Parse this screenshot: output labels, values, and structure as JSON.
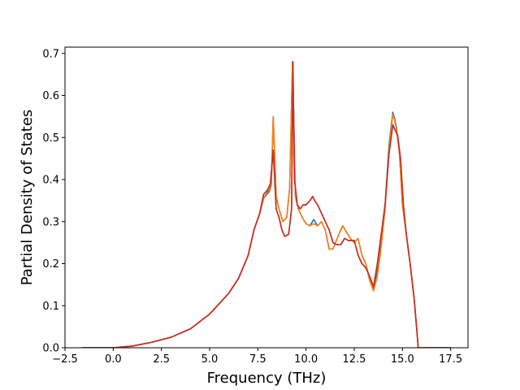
{
  "chart_data": {
    "type": "line",
    "title": "",
    "xlabel": "Frequency (THz)",
    "ylabel": "Partial Density of States",
    "xlim": [
      -2.5,
      18.4
    ],
    "ylim": [
      0.0,
      0.715
    ],
    "xticks": [
      -2.5,
      0.0,
      2.5,
      5.0,
      7.5,
      10.0,
      12.5,
      15.0,
      17.5
    ],
    "xtick_labels": [
      "−2.5",
      "0.0",
      "2.5",
      "5.0",
      "7.5",
      "10.0",
      "12.5",
      "15.0",
      "17.5"
    ],
    "yticks": [
      0.0,
      0.1,
      0.2,
      0.3,
      0.4,
      0.5,
      0.6,
      0.7
    ],
    "ytick_labels": [
      "0.0",
      "0.1",
      "0.2",
      "0.3",
      "0.4",
      "0.5",
      "0.6",
      "0.7"
    ],
    "grid": false,
    "legend": "none",
    "series": [
      {
        "color": "#1f77b4",
        "x": [
          -1.6,
          0.0,
          1.0,
          2.0,
          3.0,
          4.0,
          5.0,
          6.0,
          6.5,
          7.0,
          7.3,
          7.6,
          7.8,
          8.0,
          8.1,
          8.2,
          8.3,
          8.45,
          8.6,
          8.8,
          9.0,
          9.15,
          9.3,
          9.45,
          9.6,
          9.8,
          10.0,
          10.2,
          10.4,
          10.6,
          10.8,
          11.0,
          11.2,
          11.4,
          11.7,
          11.9,
          12.1,
          12.3,
          12.5,
          12.7,
          12.9,
          13.1,
          13.3,
          13.5,
          13.7,
          13.9,
          14.1,
          14.3,
          14.5,
          14.6,
          14.7,
          14.85,
          15.0,
          15.2,
          15.4,
          15.6,
          15.75,
          15.82,
          16.2,
          17.5
        ],
        "y": [
          0.0,
          0.0,
          0.004,
          0.013,
          0.025,
          0.045,
          0.08,
          0.13,
          0.165,
          0.22,
          0.28,
          0.32,
          0.355,
          0.37,
          0.375,
          0.39,
          0.55,
          0.36,
          0.33,
          0.3,
          0.31,
          0.38,
          0.68,
          0.36,
          0.33,
          0.31,
          0.295,
          0.29,
          0.305,
          0.29,
          0.3,
          0.28,
          0.235,
          0.235,
          0.27,
          0.29,
          0.275,
          0.26,
          0.25,
          0.26,
          0.22,
          0.2,
          0.16,
          0.14,
          0.18,
          0.25,
          0.34,
          0.48,
          0.56,
          0.545,
          0.52,
          0.46,
          0.34,
          0.27,
          0.2,
          0.12,
          0.04,
          0.0,
          0.0,
          0.0
        ]
      },
      {
        "color": "#ff7f0e",
        "x": [
          -1.6,
          0.0,
          1.0,
          2.0,
          3.0,
          4.0,
          5.0,
          6.0,
          6.5,
          7.0,
          7.3,
          7.6,
          7.8,
          8.0,
          8.1,
          8.2,
          8.3,
          8.45,
          8.6,
          8.8,
          9.0,
          9.15,
          9.3,
          9.45,
          9.6,
          9.8,
          10.0,
          10.2,
          10.4,
          10.6,
          10.8,
          11.0,
          11.2,
          11.4,
          11.7,
          11.9,
          12.1,
          12.3,
          12.5,
          12.7,
          12.9,
          13.1,
          13.3,
          13.5,
          13.7,
          13.9,
          14.1,
          14.3,
          14.5,
          14.6,
          14.7,
          14.85,
          15.0,
          15.2,
          15.4,
          15.6,
          15.75,
          15.82,
          16.2,
          17.5
        ],
        "y": [
          0.0,
          0.0,
          0.004,
          0.013,
          0.025,
          0.045,
          0.08,
          0.13,
          0.165,
          0.22,
          0.28,
          0.32,
          0.355,
          0.365,
          0.37,
          0.385,
          0.55,
          0.36,
          0.33,
          0.3,
          0.31,
          0.38,
          0.68,
          0.36,
          0.33,
          0.31,
          0.295,
          0.29,
          0.295,
          0.29,
          0.3,
          0.28,
          0.235,
          0.235,
          0.27,
          0.29,
          0.275,
          0.26,
          0.25,
          0.26,
          0.22,
          0.2,
          0.16,
          0.135,
          0.17,
          0.24,
          0.33,
          0.47,
          0.555,
          0.54,
          0.515,
          0.46,
          0.34,
          0.27,
          0.2,
          0.12,
          0.04,
          0.0,
          0.0,
          0.0
        ]
      },
      {
        "color": "#2ca02c",
        "x": [
          -1.6,
          0.0,
          1.0,
          2.0,
          3.0,
          4.0,
          5.0,
          6.0,
          6.5,
          7.0,
          7.3,
          7.6,
          7.8,
          8.0,
          8.15,
          8.3,
          8.45,
          8.6,
          8.75,
          8.9,
          9.1,
          9.25,
          9.32,
          9.4,
          9.55,
          9.7,
          9.85,
          10.0,
          10.2,
          10.35,
          10.45,
          10.6,
          10.8,
          11.0,
          11.2,
          11.4,
          11.6,
          11.8,
          12.0,
          12.2,
          12.5,
          12.7,
          12.9,
          13.1,
          13.3,
          13.5,
          13.7,
          13.9,
          14.1,
          14.3,
          14.5,
          14.6,
          14.75,
          14.9,
          15.05,
          15.2,
          15.4,
          15.6,
          15.75,
          15.82,
          16.2,
          17.5
        ],
        "y": [
          0.0,
          0.0,
          0.004,
          0.013,
          0.025,
          0.045,
          0.08,
          0.13,
          0.165,
          0.22,
          0.28,
          0.32,
          0.365,
          0.375,
          0.39,
          0.47,
          0.33,
          0.31,
          0.28,
          0.265,
          0.27,
          0.33,
          0.68,
          0.4,
          0.34,
          0.33,
          0.34,
          0.34,
          0.35,
          0.36,
          0.35,
          0.34,
          0.32,
          0.3,
          0.28,
          0.25,
          0.245,
          0.245,
          0.26,
          0.255,
          0.255,
          0.22,
          0.2,
          0.19,
          0.17,
          0.145,
          0.2,
          0.27,
          0.34,
          0.46,
          0.53,
          0.52,
          0.505,
          0.45,
          0.34,
          0.27,
          0.2,
          0.12,
          0.04,
          0.0,
          0.0,
          0.0
        ]
      },
      {
        "color": "#d62728",
        "x": [
          -1.6,
          0.0,
          1.0,
          2.0,
          3.0,
          4.0,
          5.0,
          6.0,
          6.5,
          7.0,
          7.3,
          7.6,
          7.8,
          8.0,
          8.15,
          8.3,
          8.45,
          8.6,
          8.75,
          8.9,
          9.1,
          9.25,
          9.32,
          9.4,
          9.55,
          9.7,
          9.85,
          10.0,
          10.2,
          10.35,
          10.45,
          10.6,
          10.8,
          11.0,
          11.2,
          11.4,
          11.6,
          11.8,
          12.0,
          12.2,
          12.5,
          12.7,
          12.9,
          13.1,
          13.3,
          13.5,
          13.7,
          13.9,
          14.1,
          14.3,
          14.5,
          14.6,
          14.75,
          14.9,
          15.05,
          15.2,
          15.4,
          15.6,
          15.75,
          15.82,
          16.2,
          17.5
        ],
        "y": [
          0.0,
          0.0,
          0.004,
          0.013,
          0.025,
          0.045,
          0.08,
          0.13,
          0.165,
          0.22,
          0.28,
          0.32,
          0.365,
          0.375,
          0.39,
          0.47,
          0.33,
          0.31,
          0.28,
          0.265,
          0.27,
          0.33,
          0.68,
          0.4,
          0.34,
          0.33,
          0.34,
          0.34,
          0.35,
          0.36,
          0.35,
          0.34,
          0.32,
          0.3,
          0.28,
          0.25,
          0.245,
          0.245,
          0.26,
          0.255,
          0.255,
          0.22,
          0.2,
          0.19,
          0.17,
          0.145,
          0.2,
          0.27,
          0.34,
          0.46,
          0.53,
          0.52,
          0.505,
          0.45,
          0.34,
          0.27,
          0.2,
          0.12,
          0.04,
          0.0,
          0.0,
          0.0
        ]
      }
    ]
  }
}
